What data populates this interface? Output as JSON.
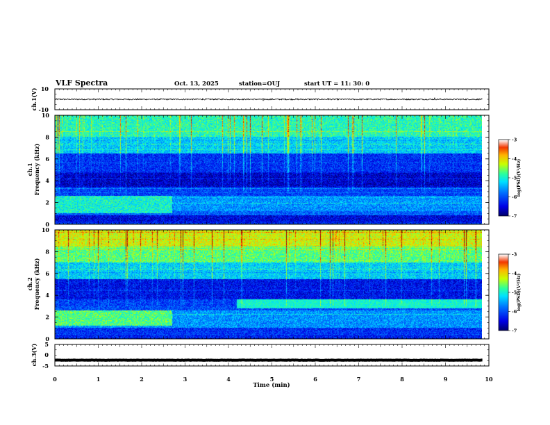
{
  "header": {
    "title": "VLF Spectra",
    "date": "Oct. 13, 2025",
    "station": "station=OUJ",
    "start": "start UT =  11: 30: 0"
  },
  "chart_data": [
    {
      "type": "line",
      "name": "ch1-waveform",
      "ylabel": "ch.1(V)",
      "ylim": [
        -10,
        10
      ],
      "yticks": [
        10,
        -10
      ],
      "xlim": [
        0,
        10
      ],
      "baseline": 0,
      "noise_amplitude": 0.6,
      "spikes": [
        {
          "x": 4.8,
          "value": -1.5
        },
        {
          "x": 8.75,
          "value": 1.6
        },
        {
          "x": 3.4,
          "value": 0.8
        },
        {
          "x": 6.3,
          "value": 1.2
        }
      ]
    },
    {
      "type": "heatmap",
      "name": "ch1-spectrogram",
      "ylabel": "ch.1",
      "ylabel2": "Frequency (kHz)",
      "ylim": [
        0,
        10
      ],
      "yticks": [
        0,
        2,
        4,
        6,
        8,
        10
      ],
      "xlim": [
        0,
        10
      ],
      "data_extent_min": 9.85,
      "colorbar": {
        "label": "log(PSD)(V²/Hz)",
        "range": [
          -7,
          -3
        ],
        "ticks": [
          -3,
          -4,
          -5,
          -6,
          -7
        ]
      },
      "bands": [
        {
          "fmin": 0.0,
          "fmax": 0.3,
          "level": -6.3
        },
        {
          "fmin": 0.3,
          "fmax": 0.8,
          "level": -6.5
        },
        {
          "fmin": 0.8,
          "fmax": 1.2,
          "level": -5.9
        },
        {
          "fmin": 1.2,
          "fmax": 2.6,
          "level": -5.6
        },
        {
          "fmin": 2.6,
          "fmax": 3.4,
          "level": -6.1
        },
        {
          "fmin": 3.4,
          "fmax": 4.8,
          "level": -6.6
        },
        {
          "fmin": 4.8,
          "fmax": 6.5,
          "level": -6.2
        },
        {
          "fmin": 6.5,
          "fmax": 8.0,
          "level": -5.3
        },
        {
          "fmin": 8.0,
          "fmax": 10.0,
          "level": -4.9
        }
      ],
      "lf_enhancement": {
        "fmin": 1.0,
        "fmax": 2.6,
        "tmax": 2.7,
        "level": -5.0
      }
    },
    {
      "type": "heatmap",
      "name": "ch2-spectrogram",
      "ylabel": "ch.2",
      "ylabel2": "Frequency (kHz)",
      "ylim": [
        0,
        10
      ],
      "yticks": [
        0,
        2,
        4,
        6,
        8,
        10
      ],
      "xlim": [
        0,
        10
      ],
      "data_extent_min": 9.85,
      "colorbar": {
        "label": "log(PSD)(V²/Hz)",
        "range": [
          -7,
          -3
        ],
        "ticks": [
          -3,
          -4,
          -5,
          -6,
          -7
        ]
      },
      "bands": [
        {
          "fmin": 0.0,
          "fmax": 0.3,
          "level": -6.3
        },
        {
          "fmin": 0.3,
          "fmax": 1.0,
          "level": -6.2
        },
        {
          "fmin": 1.0,
          "fmax": 2.6,
          "level": -5.6
        },
        {
          "fmin": 2.6,
          "fmax": 3.0,
          "level": -6.0
        },
        {
          "fmin": 3.0,
          "fmax": 3.6,
          "level": -6.1
        },
        {
          "fmin": 3.6,
          "fmax": 5.5,
          "level": -6.4
        },
        {
          "fmin": 5.5,
          "fmax": 7.0,
          "level": -5.3
        },
        {
          "fmin": 7.0,
          "fmax": 8.5,
          "level": -4.7
        },
        {
          "fmin": 8.5,
          "fmax": 10.0,
          "level": -4.2
        }
      ],
      "lf_enhancement": {
        "fmin": 1.2,
        "fmax": 2.6,
        "tmax": 2.7,
        "level": -4.7
      },
      "band_after": {
        "tmin": 4.2,
        "fmin": 2.8,
        "fmax": 3.6,
        "level": -5.0
      }
    },
    {
      "type": "line",
      "name": "ch3-waveform",
      "ylabel": "ch.3(V)",
      "ylim": [
        -5,
        5
      ],
      "yticks": [
        5,
        0,
        -5
      ],
      "xlim": [
        0,
        10
      ],
      "xlabel": "Time (min)",
      "xticks": [
        0,
        1,
        2,
        3,
        4,
        5,
        6,
        7,
        8,
        9,
        10
      ],
      "baseline": -2.3,
      "noise_amplitude": 0.08
    }
  ]
}
